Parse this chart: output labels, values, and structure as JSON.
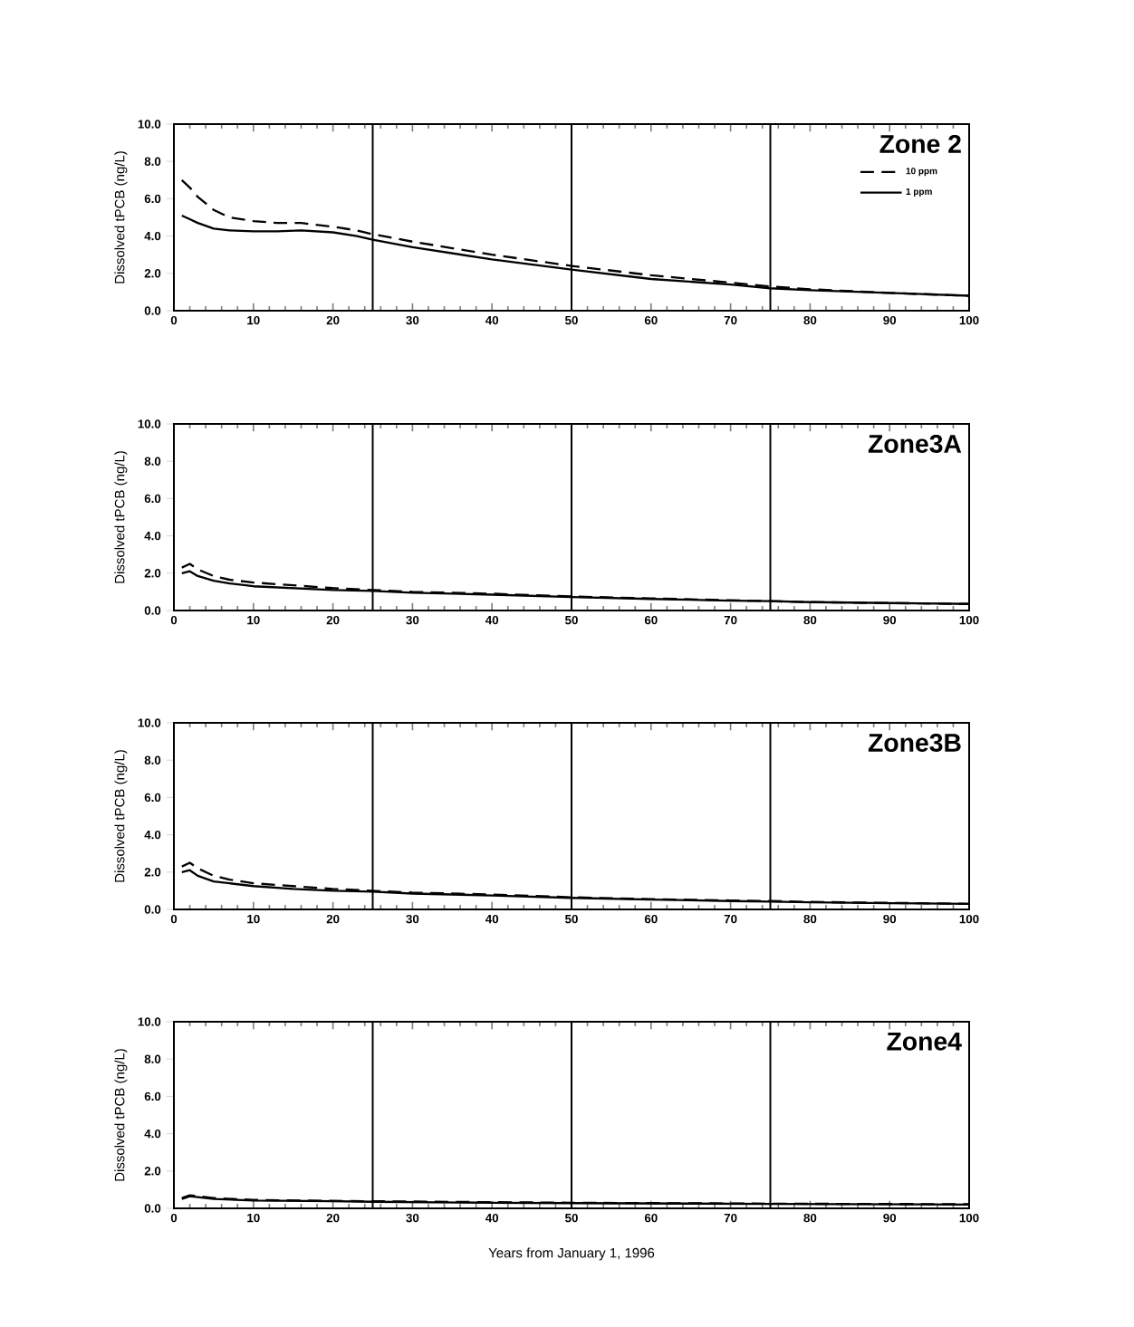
{
  "chart_data": [
    {
      "type": "line",
      "title": "Zone 2",
      "ylabel": "Dissolved tPCB (ng/L)",
      "xlim": [
        0,
        100
      ],
      "ylim": [
        0,
        10
      ],
      "xticks": [
        0,
        10,
        20,
        30,
        40,
        50,
        60,
        70,
        80,
        90,
        100
      ],
      "yticks": [
        {
          "value": 0,
          "label": "0.0"
        },
        {
          "value": 2,
          "label": "2.0"
        },
        {
          "value": 4,
          "label": "4.0"
        },
        {
          "value": 6,
          "label": "6.0"
        },
        {
          "value": 8,
          "label": "8.0"
        },
        {
          "value": 10,
          "label": "10.0"
        }
      ],
      "legend": "top right",
      "grid": false,
      "ref_lines": [
        {
          "axis": "x",
          "value": 25
        },
        {
          "axis": "x",
          "value": 50
        },
        {
          "axis": "x",
          "value": 75
        }
      ],
      "series": [
        {
          "name": "10 ppm",
          "color": "#000000",
          "line_style": "dashed",
          "x": [
            1,
            2,
            3,
            5,
            7,
            10,
            13,
            16,
            20,
            23,
            25,
            30,
            40,
            50,
            60,
            70,
            75,
            80,
            90,
            100
          ],
          "values": [
            7.0,
            6.6,
            6.1,
            5.4,
            5.0,
            4.8,
            4.7,
            4.7,
            4.5,
            4.3,
            4.1,
            3.7,
            3.0,
            2.4,
            1.9,
            1.5,
            1.3,
            1.15,
            0.95,
            0.8
          ]
        },
        {
          "name": "1 ppm",
          "color": "#000000",
          "line_style": "solid",
          "x": [
            1,
            2,
            3,
            5,
            7,
            10,
            13,
            16,
            20,
            23,
            25,
            30,
            40,
            50,
            60,
            70,
            75,
            80,
            90,
            100
          ],
          "values": [
            5.1,
            4.9,
            4.7,
            4.4,
            4.3,
            4.25,
            4.25,
            4.3,
            4.2,
            4.0,
            3.8,
            3.4,
            2.75,
            2.2,
            1.7,
            1.4,
            1.2,
            1.1,
            0.95,
            0.8
          ]
        }
      ]
    },
    {
      "type": "line",
      "title": "Zone3A",
      "ylabel": "Dissolved tPCB (ng/L)",
      "xlim": [
        0,
        100
      ],
      "ylim": [
        0,
        10
      ],
      "xticks": [
        0,
        10,
        20,
        30,
        40,
        50,
        60,
        70,
        80,
        90,
        100
      ],
      "yticks": [
        {
          "value": 0,
          "label": "0.0"
        },
        {
          "value": 2,
          "label": "2.0"
        },
        {
          "value": 4,
          "label": "4.0"
        },
        {
          "value": 6,
          "label": "6.0"
        },
        {
          "value": 8,
          "label": "8.0"
        },
        {
          "value": 10,
          "label": "10.0"
        }
      ],
      "legend": false,
      "grid": false,
      "ref_lines": [
        {
          "axis": "x",
          "value": 25
        },
        {
          "axis": "x",
          "value": 50
        },
        {
          "axis": "x",
          "value": 75
        }
      ],
      "series": [
        {
          "color": "#000000",
          "line_style": "dashed",
          "x": [
            1,
            2,
            3,
            5,
            7,
            10,
            15,
            20,
            25,
            30,
            40,
            50,
            60,
            70,
            75,
            80,
            90,
            100
          ],
          "values": [
            2.3,
            2.5,
            2.2,
            1.85,
            1.65,
            1.5,
            1.35,
            1.2,
            1.1,
            1.0,
            0.9,
            0.75,
            0.65,
            0.55,
            0.5,
            0.45,
            0.4,
            0.35
          ]
        },
        {
          "color": "#000000",
          "line_style": "solid",
          "x": [
            1,
            2,
            3,
            5,
            7,
            10,
            15,
            20,
            25,
            30,
            40,
            50,
            60,
            70,
            75,
            80,
            90,
            100
          ],
          "values": [
            2.0,
            2.1,
            1.85,
            1.6,
            1.45,
            1.3,
            1.2,
            1.1,
            1.05,
            0.95,
            0.85,
            0.72,
            0.62,
            0.53,
            0.5,
            0.45,
            0.4,
            0.35
          ]
        }
      ]
    },
    {
      "type": "line",
      "title": "Zone3B",
      "ylabel": "Dissolved tPCB (ng/L)",
      "xlim": [
        0,
        100
      ],
      "ylim": [
        0,
        10
      ],
      "xticks": [
        0,
        10,
        20,
        30,
        40,
        50,
        60,
        70,
        80,
        90,
        100
      ],
      "yticks": [
        {
          "value": 0,
          "label": "0.0"
        },
        {
          "value": 2,
          "label": "2.0"
        },
        {
          "value": 4,
          "label": "4.0"
        },
        {
          "value": 6,
          "label": "6.0"
        },
        {
          "value": 8,
          "label": "8.0"
        },
        {
          "value": 10,
          "label": "10.0"
        }
      ],
      "legend": false,
      "grid": false,
      "ref_lines": [
        {
          "axis": "x",
          "value": 25
        },
        {
          "axis": "x",
          "value": 50
        },
        {
          "axis": "x",
          "value": 75
        }
      ],
      "series": [
        {
          "color": "#000000",
          "line_style": "dashed",
          "x": [
            1,
            2,
            3,
            5,
            7,
            10,
            15,
            20,
            25,
            30,
            40,
            50,
            60,
            70,
            75,
            80,
            90,
            100
          ],
          "values": [
            2.3,
            2.5,
            2.2,
            1.8,
            1.6,
            1.4,
            1.25,
            1.1,
            1.0,
            0.9,
            0.8,
            0.65,
            0.55,
            0.48,
            0.45,
            0.4,
            0.35,
            0.3
          ]
        },
        {
          "color": "#000000",
          "line_style": "solid",
          "x": [
            1,
            2,
            3,
            5,
            7,
            10,
            15,
            20,
            25,
            30,
            40,
            50,
            60,
            70,
            75,
            80,
            90,
            100
          ],
          "values": [
            2.0,
            2.1,
            1.8,
            1.5,
            1.4,
            1.25,
            1.1,
            1.0,
            0.95,
            0.85,
            0.75,
            0.62,
            0.53,
            0.45,
            0.42,
            0.38,
            0.33,
            0.3
          ]
        }
      ]
    },
    {
      "type": "line",
      "title": "Zone4",
      "ylabel": "Dissolved tPCB (ng/L)",
      "xlabel": "Years from January 1, 1996",
      "xlim": [
        0,
        100
      ],
      "ylim": [
        0,
        10
      ],
      "xticks": [
        0,
        10,
        20,
        30,
        40,
        50,
        60,
        70,
        80,
        90,
        100
      ],
      "yticks": [
        {
          "value": 0,
          "label": "0.0"
        },
        {
          "value": 2,
          "label": "2.0"
        },
        {
          "value": 4,
          "label": "4.0"
        },
        {
          "value": 6,
          "label": "6.0"
        },
        {
          "value": 8,
          "label": "8.0"
        },
        {
          "value": 10,
          "label": "10.0"
        }
      ],
      "legend": false,
      "grid": false,
      "ref_lines": [
        {
          "axis": "x",
          "value": 25
        },
        {
          "axis": "x",
          "value": 50
        },
        {
          "axis": "x",
          "value": 75
        }
      ],
      "series": [
        {
          "color": "#000000",
          "line_style": "dashed",
          "x": [
            1,
            2,
            3,
            5,
            10,
            20,
            25,
            40,
            50,
            75,
            100
          ],
          "values": [
            0.55,
            0.7,
            0.65,
            0.55,
            0.45,
            0.4,
            0.38,
            0.33,
            0.3,
            0.25,
            0.22
          ]
        },
        {
          "color": "#000000",
          "line_style": "solid",
          "x": [
            1,
            2,
            3,
            5,
            10,
            20,
            25,
            40,
            50,
            75,
            100
          ],
          "values": [
            0.5,
            0.65,
            0.6,
            0.5,
            0.42,
            0.38,
            0.35,
            0.3,
            0.28,
            0.24,
            0.2
          ]
        }
      ]
    }
  ]
}
